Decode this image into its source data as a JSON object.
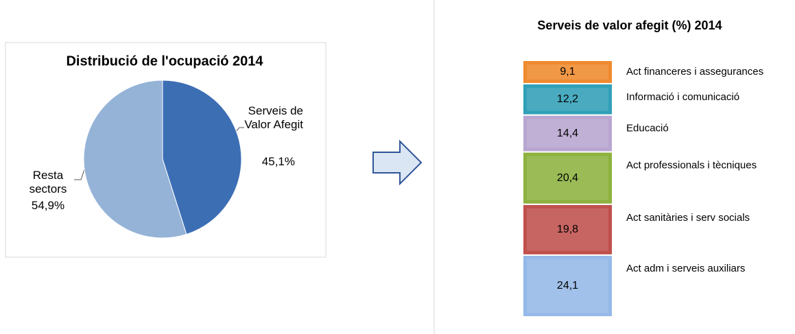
{
  "chart_data": [
    {
      "type": "pie",
      "title": "Distribució de l'ocupació 2014",
      "categories": [
        "Serveis de Valor Afegit",
        "Resta sectors"
      ],
      "values": [
        45.1,
        54.9
      ],
      "value_labels": [
        "45,1%",
        "54,9%"
      ],
      "colors": [
        "#3c6eb4",
        "#95b3d7"
      ]
    },
    {
      "type": "bar",
      "stacked": true,
      "title": "Serveis de valor afegit (%) 2014",
      "categories": [
        null
      ],
      "ylim": [
        0,
        100
      ],
      "series": [
        {
          "name": "Act  adm i serveis auxiliars",
          "color": "#95b9e8",
          "values": [
            24.1
          ],
          "value_labels": [
            "24,1"
          ]
        },
        {
          "name": "Act sanitàries i serv socials",
          "color": "#c0504d",
          "values": [
            19.8
          ],
          "value_labels": [
            "19,8"
          ]
        },
        {
          "name": "Act professionals i tècniques",
          "color": "#8db23f",
          "values": [
            20.4
          ],
          "value_labels": [
            "20,4"
          ]
        },
        {
          "name": "Educació",
          "color": "#b8a6d0",
          "values": [
            14.4
          ],
          "value_labels": [
            "14,4"
          ]
        },
        {
          "name": "Informació i comunicació",
          "color": "#31a0b8",
          "values": [
            12.2
          ],
          "value_labels": [
            "12,2"
          ]
        },
        {
          "name": "Act financeres i assegurances",
          "color": "#ef8a2e",
          "values": [
            9.1
          ],
          "value_labels": [
            "9,1"
          ]
        }
      ]
    }
  ]
}
